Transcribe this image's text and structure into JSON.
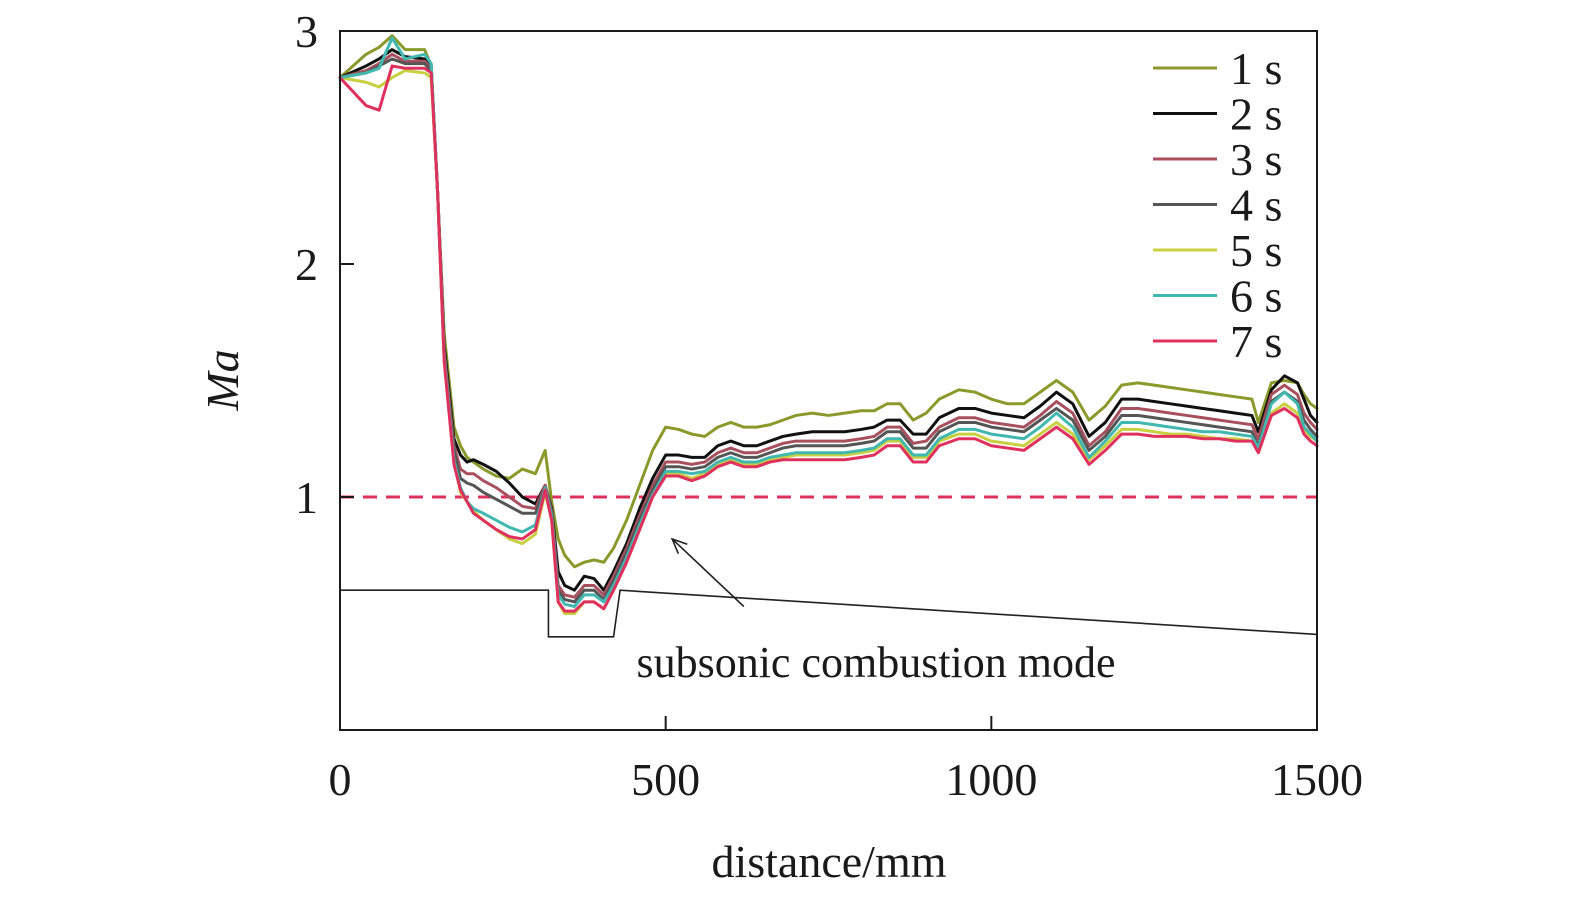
{
  "chart_data": {
    "type": "line",
    "xlabel": "distance/mm",
    "ylabel": "Ma",
    "xlim": [
      0,
      1500
    ],
    "ylim": [
      0,
      3
    ],
    "xticks": [
      0,
      500,
      1000,
      1500
    ],
    "yticks": [
      1,
      2,
      3
    ],
    "xtick_labels": [
      "0",
      "500",
      "1000",
      "1500"
    ],
    "ytick_labels": [
      "1",
      "2",
      "3"
    ],
    "grid": false,
    "legend": "top-right",
    "reference_line": {
      "y": 1,
      "style": "dashed",
      "color": "#e0305e"
    },
    "geometry_profile": {
      "color": "#222222",
      "x": [
        0,
        320,
        320,
        420,
        430,
        1500
      ],
      "y": [
        0.6,
        0.6,
        0.4,
        0.4,
        0.6,
        0.41
      ]
    },
    "annotation": {
      "text": "subsonic combustion mode",
      "arrow_from": [
        620,
        0.53
      ],
      "arrow_to": [
        510,
        0.82
      ]
    },
    "x": [
      0,
      40,
      60,
      80,
      100,
      130,
      140,
      150,
      160,
      175,
      185,
      195,
      205,
      220,
      240,
      260,
      280,
      300,
      315,
      325,
      335,
      345,
      360,
      375,
      390,
      405,
      420,
      440,
      460,
      480,
      500,
      520,
      540,
      560,
      580,
      600,
      620,
      640,
      660,
      680,
      700,
      725,
      750,
      775,
      800,
      820,
      840,
      860,
      880,
      900,
      920,
      950,
      975,
      1000,
      1025,
      1050,
      1075,
      1100,
      1125,
      1150,
      1175,
      1200,
      1225,
      1250,
      1275,
      1300,
      1325,
      1350,
      1375,
      1400,
      1410,
      1430,
      1450,
      1470,
      1480,
      1490,
      1500
    ],
    "series": [
      {
        "name": "1 s",
        "color": "#8a9a2a",
        "values": [
          2.8,
          2.9,
          2.93,
          2.98,
          2.92,
          2.92,
          2.85,
          2.3,
          1.7,
          1.3,
          1.22,
          1.17,
          1.15,
          1.12,
          1.09,
          1.08,
          1.12,
          1.1,
          1.2,
          0.98,
          0.82,
          0.75,
          0.7,
          0.72,
          0.73,
          0.72,
          0.78,
          0.9,
          1.05,
          1.2,
          1.3,
          1.29,
          1.27,
          1.26,
          1.3,
          1.32,
          1.3,
          1.3,
          1.31,
          1.33,
          1.35,
          1.36,
          1.35,
          1.36,
          1.37,
          1.37,
          1.4,
          1.4,
          1.33,
          1.36,
          1.42,
          1.46,
          1.45,
          1.42,
          1.4,
          1.4,
          1.45,
          1.5,
          1.45,
          1.33,
          1.39,
          1.48,
          1.49,
          1.48,
          1.47,
          1.46,
          1.45,
          1.44,
          1.43,
          1.42,
          1.32,
          1.49,
          1.5,
          1.49,
          1.44,
          1.4,
          1.38
        ]
      },
      {
        "name": "2 s",
        "color": "#111111",
        "values": [
          2.8,
          2.85,
          2.88,
          2.92,
          2.89,
          2.88,
          2.85,
          2.3,
          1.65,
          1.25,
          1.18,
          1.15,
          1.16,
          1.14,
          1.11,
          1.06,
          1.0,
          0.97,
          1.05,
          0.95,
          0.68,
          0.62,
          0.6,
          0.66,
          0.65,
          0.6,
          0.68,
          0.8,
          0.95,
          1.08,
          1.18,
          1.18,
          1.17,
          1.17,
          1.22,
          1.24,
          1.22,
          1.22,
          1.24,
          1.26,
          1.27,
          1.28,
          1.28,
          1.28,
          1.29,
          1.3,
          1.33,
          1.33,
          1.27,
          1.27,
          1.34,
          1.38,
          1.38,
          1.36,
          1.35,
          1.34,
          1.39,
          1.45,
          1.4,
          1.26,
          1.32,
          1.42,
          1.42,
          1.41,
          1.4,
          1.39,
          1.38,
          1.37,
          1.36,
          1.35,
          1.28,
          1.46,
          1.52,
          1.49,
          1.42,
          1.35,
          1.32
        ]
      },
      {
        "name": "3 s",
        "color": "#a8505e",
        "values": [
          2.8,
          2.83,
          2.86,
          2.9,
          2.87,
          2.87,
          2.84,
          2.3,
          1.62,
          1.22,
          1.12,
          1.1,
          1.1,
          1.07,
          1.04,
          1.0,
          0.96,
          0.95,
          1.05,
          0.94,
          0.62,
          0.58,
          0.57,
          0.62,
          0.62,
          0.58,
          0.66,
          0.78,
          0.92,
          1.05,
          1.15,
          1.15,
          1.14,
          1.15,
          1.19,
          1.21,
          1.19,
          1.19,
          1.21,
          1.23,
          1.24,
          1.24,
          1.24,
          1.24,
          1.25,
          1.26,
          1.3,
          1.3,
          1.23,
          1.24,
          1.3,
          1.34,
          1.34,
          1.32,
          1.31,
          1.3,
          1.35,
          1.41,
          1.36,
          1.22,
          1.28,
          1.38,
          1.38,
          1.37,
          1.36,
          1.35,
          1.34,
          1.33,
          1.32,
          1.31,
          1.25,
          1.44,
          1.48,
          1.44,
          1.36,
          1.32,
          1.29
        ]
      },
      {
        "name": "4 s",
        "color": "#555555",
        "values": [
          2.8,
          2.82,
          2.85,
          2.88,
          2.86,
          2.86,
          2.83,
          2.3,
          1.6,
          1.2,
          1.08,
          1.06,
          1.05,
          1.02,
          0.99,
          0.96,
          0.93,
          0.93,
          1.04,
          0.93,
          0.6,
          0.56,
          0.55,
          0.6,
          0.6,
          0.56,
          0.64,
          0.76,
          0.9,
          1.03,
          1.13,
          1.13,
          1.12,
          1.13,
          1.17,
          1.19,
          1.17,
          1.17,
          1.19,
          1.21,
          1.22,
          1.22,
          1.22,
          1.22,
          1.23,
          1.24,
          1.28,
          1.28,
          1.21,
          1.21,
          1.28,
          1.32,
          1.32,
          1.3,
          1.29,
          1.28,
          1.33,
          1.38,
          1.33,
          1.2,
          1.26,
          1.35,
          1.35,
          1.34,
          1.33,
          1.32,
          1.31,
          1.3,
          1.29,
          1.28,
          1.22,
          1.41,
          1.45,
          1.41,
          1.33,
          1.29,
          1.26
        ]
      },
      {
        "name": "5 s",
        "color": "#c9d040",
        "values": [
          2.8,
          2.78,
          2.76,
          2.8,
          2.83,
          2.82,
          2.8,
          2.3,
          1.58,
          1.15,
          1.02,
          0.98,
          0.94,
          0.9,
          0.86,
          0.82,
          0.8,
          0.84,
          1.02,
          0.9,
          0.55,
          0.5,
          0.5,
          0.55,
          0.55,
          0.52,
          0.6,
          0.72,
          0.86,
          1.0,
          1.1,
          1.1,
          1.08,
          1.1,
          1.14,
          1.16,
          1.14,
          1.14,
          1.16,
          1.17,
          1.18,
          1.18,
          1.18,
          1.18,
          1.19,
          1.2,
          1.24,
          1.24,
          1.17,
          1.17,
          1.24,
          1.27,
          1.27,
          1.24,
          1.23,
          1.22,
          1.27,
          1.32,
          1.27,
          1.16,
          1.22,
          1.29,
          1.29,
          1.28,
          1.27,
          1.27,
          1.26,
          1.25,
          1.25,
          1.24,
          1.2,
          1.36,
          1.4,
          1.36,
          1.29,
          1.26,
          1.24
        ]
      },
      {
        "name": "6 s",
        "color": "#40b8b0",
        "values": [
          2.8,
          2.82,
          2.84,
          2.97,
          2.88,
          2.9,
          2.86,
          2.3,
          1.6,
          1.16,
          1.04,
          0.98,
          0.95,
          0.93,
          0.9,
          0.87,
          0.85,
          0.88,
          1.04,
          0.92,
          0.58,
          0.54,
          0.53,
          0.58,
          0.58,
          0.55,
          0.62,
          0.74,
          0.88,
          1.01,
          1.11,
          1.11,
          1.1,
          1.11,
          1.15,
          1.17,
          1.15,
          1.15,
          1.17,
          1.18,
          1.19,
          1.19,
          1.19,
          1.19,
          1.2,
          1.21,
          1.25,
          1.25,
          1.18,
          1.18,
          1.25,
          1.29,
          1.29,
          1.27,
          1.26,
          1.25,
          1.3,
          1.36,
          1.3,
          1.17,
          1.24,
          1.32,
          1.32,
          1.31,
          1.3,
          1.29,
          1.28,
          1.28,
          1.27,
          1.26,
          1.21,
          1.4,
          1.45,
          1.4,
          1.3,
          1.27,
          1.24
        ]
      },
      {
        "name": "7 s",
        "color": "#e0305e",
        "values": [
          2.8,
          2.68,
          2.66,
          2.85,
          2.84,
          2.84,
          2.82,
          2.3,
          1.58,
          1.14,
          1.03,
          0.98,
          0.93,
          0.9,
          0.86,
          0.83,
          0.82,
          0.86,
          1.03,
          0.9,
          0.55,
          0.51,
          0.51,
          0.55,
          0.55,
          0.52,
          0.6,
          0.72,
          0.86,
          1.0,
          1.09,
          1.09,
          1.07,
          1.09,
          1.13,
          1.15,
          1.13,
          1.13,
          1.15,
          1.16,
          1.16,
          1.16,
          1.16,
          1.16,
          1.17,
          1.18,
          1.22,
          1.22,
          1.15,
          1.15,
          1.22,
          1.25,
          1.25,
          1.22,
          1.21,
          1.2,
          1.25,
          1.3,
          1.25,
          1.14,
          1.2,
          1.27,
          1.27,
          1.26,
          1.26,
          1.26,
          1.25,
          1.25,
          1.24,
          1.24,
          1.19,
          1.35,
          1.38,
          1.34,
          1.27,
          1.24,
          1.22
        ]
      }
    ]
  }
}
